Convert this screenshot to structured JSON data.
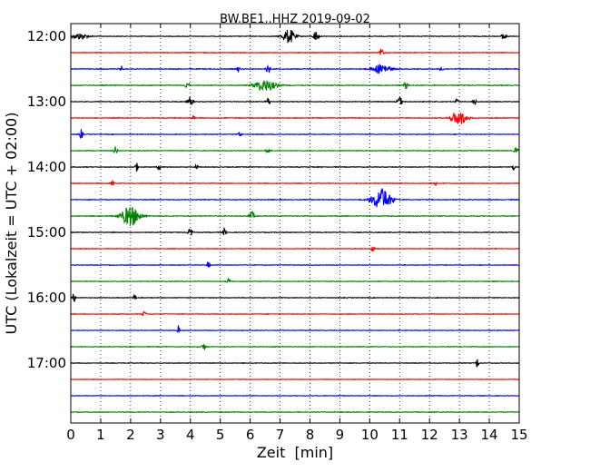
{
  "chart_data": {
    "type": "line",
    "title": "BW.BE1..HHZ 2019-09-02",
    "xlabel": "Zeit  [min]",
    "ylabel": "UTC (Lokalzeit = UTC + 02:00)",
    "xlim": [
      0,
      15
    ],
    "x_ticks": [
      "0",
      "1",
      "2",
      "3",
      "4",
      "5",
      "6",
      "7",
      "8",
      "9",
      "10",
      "11",
      "12",
      "13",
      "14",
      "15"
    ],
    "y_ticks": [
      "12:00",
      "13:00",
      "14:00",
      "15:00",
      "16:00",
      "17:00"
    ],
    "grid": "vertical dotted",
    "colors": [
      "#000000",
      "#ff0000",
      "#0000ff",
      "#008000"
    ],
    "traces": [
      {
        "start": "12:00",
        "color": "#000000",
        "noise": 0.22,
        "events": [
          {
            "t": 0.3,
            "amp": 2.2,
            "w": 0.25
          },
          {
            "t": 7.3,
            "amp": 5,
            "w": 0.2
          },
          {
            "t": 8.2,
            "amp": 4,
            "w": 0.08
          },
          {
            "t": 14.5,
            "amp": 3,
            "w": 0.08
          }
        ]
      },
      {
        "start": "12:15",
        "color": "#ff0000",
        "noise": 0.24,
        "events": [
          {
            "t": 10.4,
            "amp": 3.5,
            "w": 0.06
          }
        ]
      },
      {
        "start": "12:30",
        "color": "#0000ff",
        "noise": 0.25,
        "events": [
          {
            "t": 1.7,
            "amp": 2.0,
            "w": 0.05
          },
          {
            "t": 5.6,
            "amp": 2.2,
            "w": 0.05
          },
          {
            "t": 6.6,
            "amp": 3.5,
            "w": 0.06
          },
          {
            "t": 10.4,
            "amp": 3.5,
            "w": 0.3
          },
          {
            "t": 12.4,
            "amp": 2.0,
            "w": 0.05
          }
        ]
      },
      {
        "start": "12:45",
        "color": "#008000",
        "noise": 0.25,
        "events": [
          {
            "t": 3.9,
            "amp": 3,
            "w": 0.06
          },
          {
            "t": 6.5,
            "amp": 4,
            "w": 0.35
          },
          {
            "t": 11.2,
            "amp": 3,
            "w": 0.06
          }
        ]
      },
      {
        "start": "13:00",
        "color": "#000000",
        "noise": 0.22,
        "events": [
          {
            "t": 4.0,
            "amp": 3.5,
            "w": 0.08
          },
          {
            "t": 6.6,
            "amp": 3.0,
            "w": 0.06
          },
          {
            "t": 11.0,
            "amp": 3.5,
            "w": 0.08
          },
          {
            "t": 12.9,
            "amp": 2.5,
            "w": 0.05
          },
          {
            "t": 13.5,
            "amp": 3.0,
            "w": 0.05
          }
        ]
      },
      {
        "start": "13:15",
        "color": "#ff0000",
        "noise": 0.25,
        "events": [
          {
            "t": 4.1,
            "amp": 2.0,
            "w": 0.05
          },
          {
            "t": 13.0,
            "amp": 5,
            "w": 0.25
          }
        ]
      },
      {
        "start": "13:30",
        "color": "#0000ff",
        "noise": 0.22,
        "events": [
          {
            "t": 0.35,
            "amp": 3.5,
            "w": 0.05
          },
          {
            "t": 5.65,
            "amp": 2.5,
            "w": 0.05
          }
        ]
      },
      {
        "start": "13:45",
        "color": "#008000",
        "noise": 0.24,
        "events": [
          {
            "t": 1.5,
            "amp": 3,
            "w": 0.06
          },
          {
            "t": 6.6,
            "amp": 2.0,
            "w": 0.06
          },
          {
            "t": 14.9,
            "amp": 2.5,
            "w": 0.06
          }
        ]
      },
      {
        "start": "14:00",
        "color": "#000000",
        "noise": 0.22,
        "events": [
          {
            "t": 2.2,
            "amp": 3,
            "w": 0.05
          },
          {
            "t": 2.95,
            "amp": 2.2,
            "w": 0.05
          },
          {
            "t": 4.2,
            "amp": 2.0,
            "w": 0.05
          },
          {
            "t": 14.8,
            "amp": 2.0,
            "w": 0.05
          }
        ]
      },
      {
        "start": "14:15",
        "color": "#ff0000",
        "noise": 0.24,
        "events": [
          {
            "t": 1.4,
            "amp": 2.5,
            "w": 0.05
          },
          {
            "t": 12.2,
            "amp": 2.0,
            "w": 0.05
          }
        ]
      },
      {
        "start": "14:30",
        "color": "#0000ff",
        "noise": 0.25,
        "events": [
          {
            "t": 10.4,
            "amp": 8,
            "w": 0.3
          }
        ]
      },
      {
        "start": "14:45",
        "color": "#008000",
        "noise": 0.26,
        "events": [
          {
            "t": 2.0,
            "amp": 7,
            "w": 0.3
          },
          {
            "t": 6.05,
            "amp": 3,
            "w": 0.08
          }
        ]
      },
      {
        "start": "15:00",
        "color": "#000000",
        "noise": 0.22,
        "events": [
          {
            "t": 4.0,
            "amp": 2.5,
            "w": 0.08
          },
          {
            "t": 5.15,
            "amp": 3,
            "w": 0.05
          }
        ]
      },
      {
        "start": "15:15",
        "color": "#ff0000",
        "noise": 0.22,
        "events": [
          {
            "t": 10.1,
            "amp": 2.8,
            "w": 0.05
          }
        ]
      },
      {
        "start": "15:30",
        "color": "#0000ff",
        "noise": 0.2,
        "events": [
          {
            "t": 4.6,
            "amp": 2.2,
            "w": 0.05
          }
        ]
      },
      {
        "start": "15:45",
        "color": "#008000",
        "noise": 0.22,
        "events": [
          {
            "t": 5.3,
            "amp": 2.2,
            "w": 0.06
          }
        ]
      },
      {
        "start": "16:00",
        "color": "#000000",
        "noise": 0.2,
        "events": [
          {
            "t": 0.1,
            "amp": 3,
            "w": 0.05
          },
          {
            "t": 2.15,
            "amp": 2.0,
            "w": 0.05
          }
        ]
      },
      {
        "start": "16:15",
        "color": "#ff0000",
        "noise": 0.22,
        "events": [
          {
            "t": 2.45,
            "amp": 2.2,
            "w": 0.05
          }
        ]
      },
      {
        "start": "16:30",
        "color": "#0000ff",
        "noise": 0.2,
        "events": [
          {
            "t": 3.6,
            "amp": 3.5,
            "w": 0.04
          }
        ]
      },
      {
        "start": "16:45",
        "color": "#008000",
        "noise": 0.22,
        "events": [
          {
            "t": 4.45,
            "amp": 2.5,
            "w": 0.06
          }
        ]
      },
      {
        "start": "17:00",
        "color": "#000000",
        "noise": 0.2,
        "events": [
          {
            "t": 13.6,
            "amp": 3.5,
            "w": 0.04
          }
        ]
      },
      {
        "start": "17:15",
        "color": "#ff0000",
        "noise": 0.18,
        "events": []
      },
      {
        "start": "17:30",
        "color": "#0000ff",
        "noise": 0.2,
        "events": []
      },
      {
        "start": "17:45",
        "color": "#008000",
        "noise": 0.22,
        "events": []
      }
    ]
  }
}
